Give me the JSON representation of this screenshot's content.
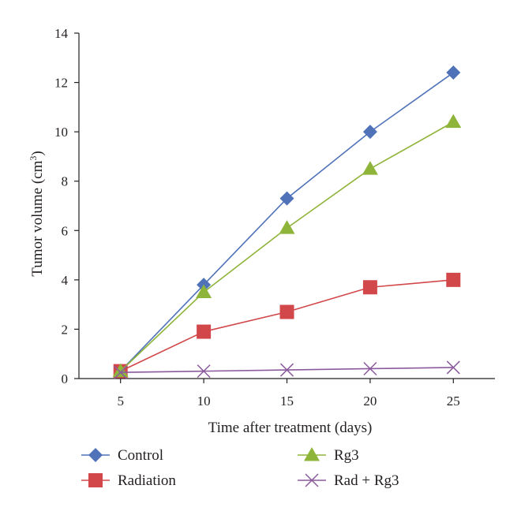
{
  "chart_data": {
    "type": "line",
    "title": "",
    "xlabel": "Time after treatment (days)",
    "ylabel_main": "Tumor volume (cm",
    "ylabel_sup": "3",
    "ylabel_close": ")",
    "x": [
      5,
      10,
      15,
      20,
      25
    ],
    "xlim": [
      2.5,
      27.5
    ],
    "ylim": [
      0,
      14
    ],
    "xticks": [
      5,
      10,
      15,
      20,
      25
    ],
    "yticks": [
      0,
      2,
      4,
      6,
      8,
      10,
      12,
      14
    ],
    "grid": false,
    "legend_placement": "bottom",
    "series": [
      {
        "name": "Control",
        "marker": "diamond",
        "color": "#4f72b8",
        "values": [
          0.3,
          3.8,
          7.3,
          10.0,
          12.4
        ]
      },
      {
        "name": "Radiation",
        "marker": "square",
        "color": "#d2484a",
        "values": [
          0.3,
          1.9,
          2.7,
          3.7,
          4.0
        ]
      },
      {
        "name": "Rg3",
        "marker": "triangle",
        "color": "#8fb43a",
        "values": [
          0.3,
          3.5,
          6.1,
          8.5,
          10.4
        ]
      },
      {
        "name": "Rad + Rg3",
        "marker": "x",
        "color": "#8a5a9c",
        "values": [
          0.25,
          0.3,
          0.35,
          0.4,
          0.45
        ]
      }
    ]
  }
}
